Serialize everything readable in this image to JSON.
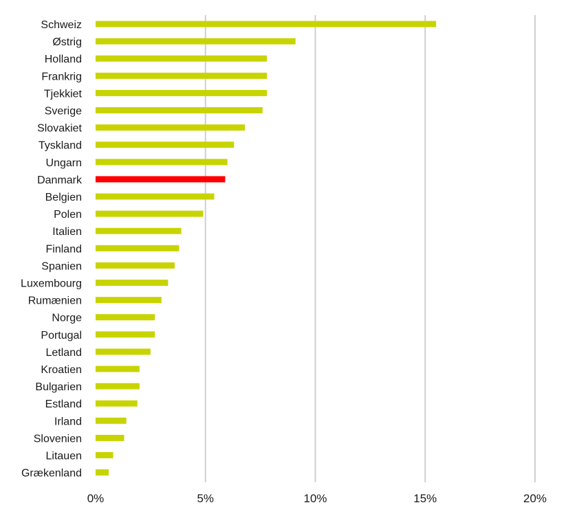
{
  "chart_data": {
    "type": "bar",
    "orientation": "horizontal",
    "categories": [
      "Schweiz",
      "Østrig",
      "Holland",
      "Frankrig",
      "Tjekkiet",
      "Sverige",
      "Slovakiet",
      "Tyskland",
      "Ungarn",
      "Danmark",
      "Belgien",
      "Polen",
      "Italien",
      "Finland",
      "Spanien",
      "Luxembourg",
      "Rumænien",
      "Norge",
      "Portugal",
      "Letland",
      "Kroatien",
      "Bulgarien",
      "Estland",
      "Irland",
      "Slovenien",
      "Litauen",
      "Grækenland"
    ],
    "values": [
      15.5,
      9.1,
      7.8,
      7.8,
      7.8,
      7.6,
      6.8,
      6.3,
      6.0,
      5.9,
      5.4,
      4.9,
      3.9,
      3.8,
      3.6,
      3.3,
      3.0,
      2.7,
      2.7,
      2.5,
      2.0,
      2.0,
      1.9,
      1.4,
      1.3,
      0.8,
      0.6
    ],
    "highlight_category": "Danmark",
    "colors": {
      "bar": "#c8d400",
      "highlight": "#ff0000",
      "grid": "#cfcfcf"
    },
    "xlim": [
      0,
      20
    ],
    "xticks": [
      0,
      5,
      10,
      15,
      20
    ],
    "xtick_labels": [
      "0%",
      "5%",
      "10%",
      "15%",
      "20%"
    ],
    "grid": "vertical",
    "legend": "none",
    "title": "",
    "xlabel": "",
    "ylabel": ""
  }
}
